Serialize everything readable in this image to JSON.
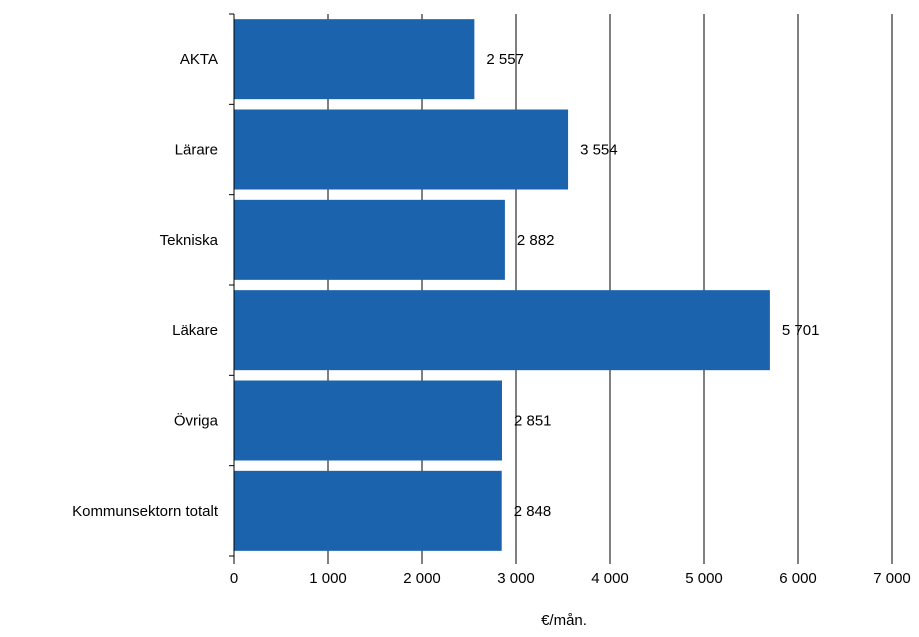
{
  "chart_data": {
    "type": "bar",
    "orientation": "horizontal",
    "categories": [
      "AKTA",
      "Lärare",
      "Tekniska",
      "Läkare",
      "Övriga",
      "Kommunsektorn totalt"
    ],
    "values": [
      2557,
      3554,
      2882,
      5701,
      2851,
      2848
    ],
    "value_labels": [
      "2 557",
      "3 554",
      "2 882",
      "5 701",
      "2 851",
      "2 848"
    ],
    "xlabel": "€/mån.",
    "ylabel": "",
    "title": "",
    "xlim": [
      0,
      7000
    ],
    "xticks": [
      0,
      1000,
      2000,
      3000,
      4000,
      5000,
      6000,
      7000
    ],
    "xtick_labels": [
      "0",
      "1 000",
      "2 000",
      "3 000",
      "4 000",
      "5 000",
      "6 000",
      "7 000"
    ],
    "grid": "vertical",
    "legend": "none",
    "bar_color": "#1c63ad"
  }
}
